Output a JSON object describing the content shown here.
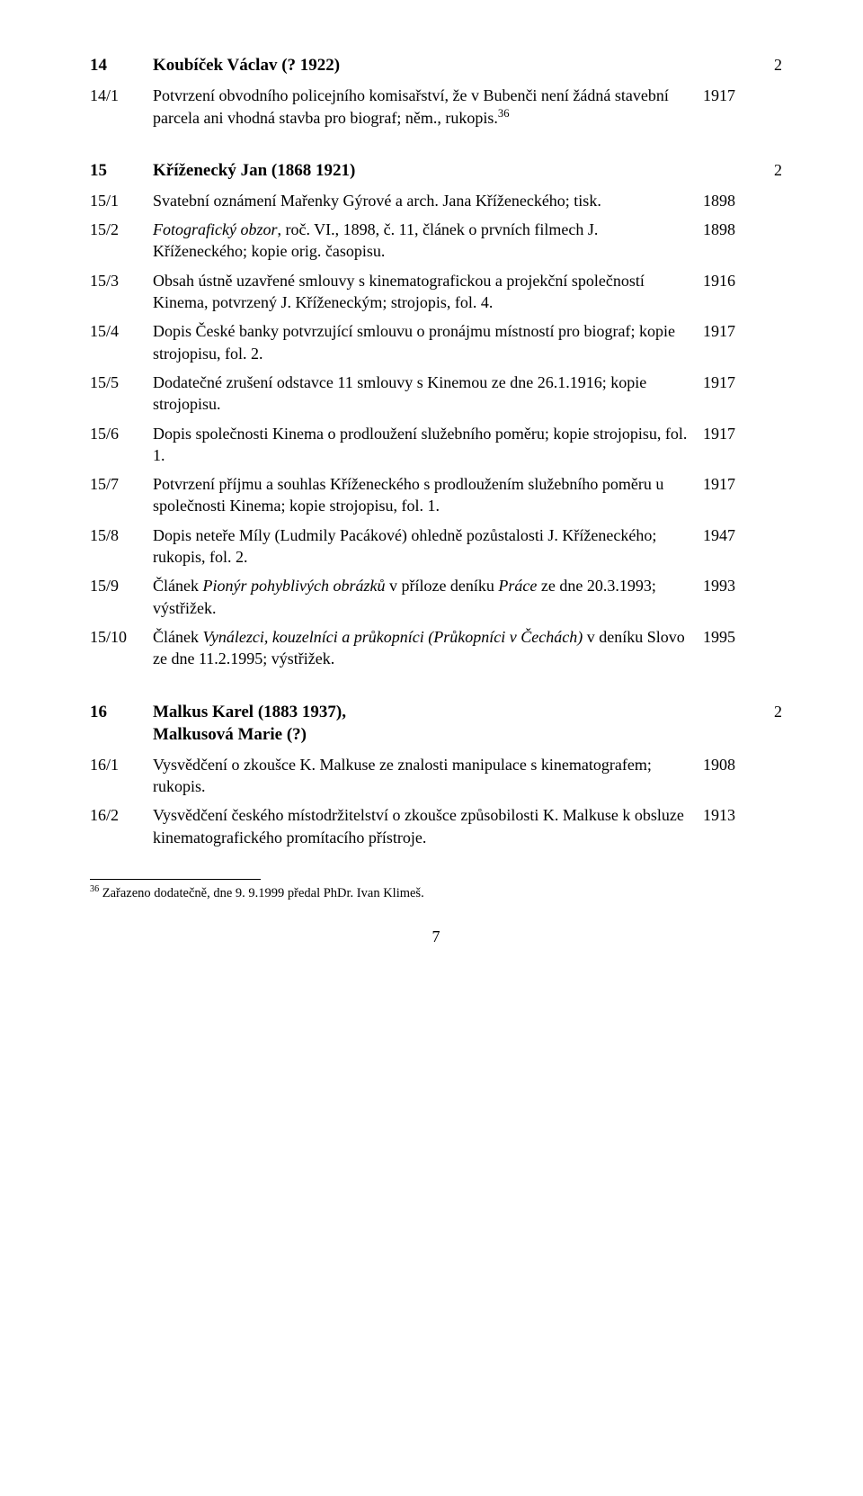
{
  "section14": {
    "heading_num": "14",
    "heading_text": "Koubíček Václav (? 1922)",
    "heading_box": "2",
    "rows": [
      {
        "num": "14/1",
        "text": "Potvrzení obvodního policejního komisařství, že v Bubenči není žádná stavební parcela ani vhodná stavba pro biograf; něm., rukopis.",
        "sup": "36",
        "year": "1917"
      }
    ]
  },
  "section15": {
    "heading_num": "15",
    "heading_text": "Kříženecký Jan (1868 1921)",
    "heading_box": "2",
    "rows": [
      {
        "num": "15/1",
        "text": "Svatební oznámení Mařenky Gýrové a arch. Jana Kříženeckého; tisk.",
        "year": "1898"
      },
      {
        "num": "15/2",
        "pre": "",
        "ital": "Fotografický obzor",
        "post": ", roč. VI., 1898, č. 11, článek o prvních filmech J. Kříženeckého; kopie orig. časopisu.",
        "year": "1898"
      },
      {
        "num": "15/3",
        "text": "Obsah ústně uzavřené smlouvy s kinematografickou a projekční společností Kinema, potvrzený J. Kříženeckým; strojopis, fol. 4.",
        "year": "1916"
      },
      {
        "num": "15/4",
        "text": "Dopis České banky potvrzující smlouvu o pronájmu místností pro biograf; kopie strojopisu, fol. 2.",
        "year": "1917"
      },
      {
        "num": "15/5",
        "text": "Dodatečné zrušení odstavce 11 smlouvy s Kinemou ze dne 26.1.1916; kopie strojopisu.",
        "year": "1917"
      },
      {
        "num": "15/6",
        "text": "Dopis společnosti Kinema o prodloužení služebního poměru; kopie strojopisu, fol. 1.",
        "year": "1917"
      },
      {
        "num": "15/7",
        "text": "Potvrzení příjmu a souhlas Kříženeckého s prodloužením služebního poměru u společnosti Kinema; kopie strojopisu, fol. 1.",
        "year": "1917"
      },
      {
        "num": "15/8",
        "text": "Dopis neteře Míly (Ludmily Pacákové) ohledně pozůstalosti J. Kříženeckého; rukopis, fol. 2.",
        "year": "1947"
      },
      {
        "num": "15/9",
        "pre": "Článek ",
        "ital": "Pionýr pohyblivých obrázků",
        "post": " v příloze deníku ",
        "ital2": "Práce",
        "post2": " ze dne 20.3.1993; výstřižek.",
        "year": "1993"
      },
      {
        "num": "15/10",
        "pre": "Článek ",
        "ital": "Vynálezci, kouzelníci a průkopníci (Průkopníci v Čechách)",
        "post": " v deníku Slovo ze dne 11.2.1995; výstřižek.",
        "year": "1995"
      }
    ]
  },
  "section16": {
    "heading_num": "16",
    "heading_text": "Malkus Karel (1883 1937),",
    "heading_text2": "Malkusová Marie (?)",
    "heading_box": "2",
    "rows": [
      {
        "num": "16/1",
        "text": "Vysvědčení o zkoušce K. Malkuse ze znalosti manipulace s kinematografem; rukopis.",
        "year": "1908"
      },
      {
        "num": "16/2",
        "text": "Vysvědčení českého místodržitelství o zkoušce způsobilosti K. Malkuse k obsluze kinematografického promítacího přístroje.",
        "year": "1913"
      }
    ]
  },
  "footnote": {
    "num": "36",
    "text": " Zařazeno dodatečně, dne 9. 9.1999 předal PhDr. Ivan Klimeš."
  },
  "pagenum": "7"
}
